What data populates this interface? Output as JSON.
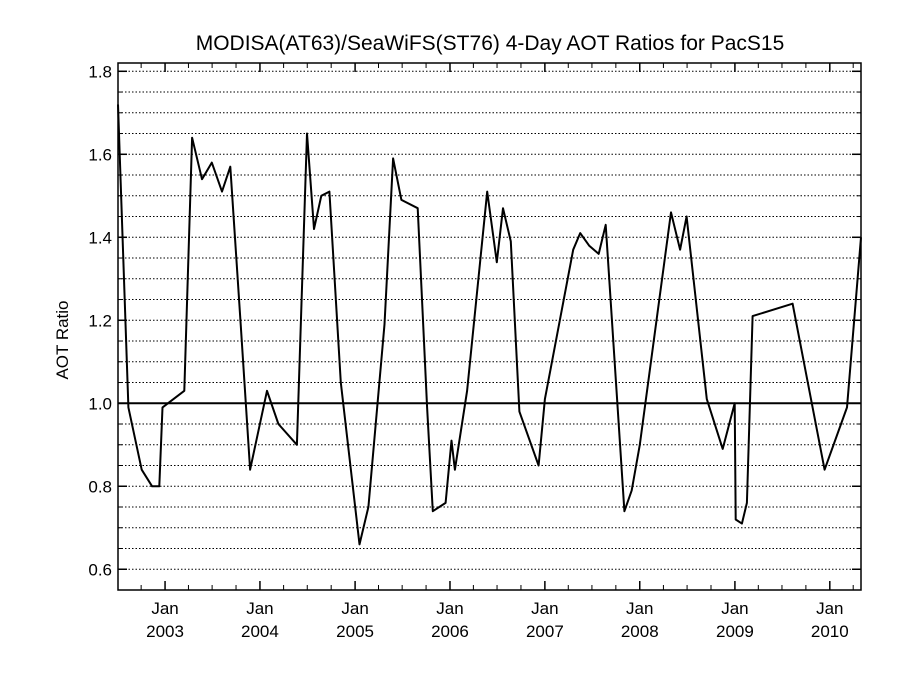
{
  "chart_data": {
    "type": "line",
    "title": "MODISA(AT63)/SeaWiFS(ST76) 4-Day AOT Ratios for PacS15",
    "xlabel": "",
    "ylabel": "AOT Ratio",
    "ylim": [
      0.55,
      1.82
    ],
    "xlim": [
      "2002-07-04",
      "2010-05-01"
    ],
    "y_ticks": [
      "0.6",
      "0.8",
      "1.0",
      "1.2",
      "1.4",
      "1.6",
      "1.8"
    ],
    "y_tick_values": [
      0.6,
      0.8,
      1.0,
      1.2,
      1.4,
      1.6,
      1.8
    ],
    "x_tick_dates": [
      "2003-01-01",
      "2004-01-01",
      "2005-01-01",
      "2006-01-01",
      "2007-01-01",
      "2008-01-01",
      "2009-01-01",
      "2010-01-01"
    ],
    "x_tick_labels": [
      {
        "month": "Jan",
        "year": "2003"
      },
      {
        "month": "Jan",
        "year": "2004"
      },
      {
        "month": "Jan",
        "year": "2005"
      },
      {
        "month": "Jan",
        "year": "2006"
      },
      {
        "month": "Jan",
        "year": "2007"
      },
      {
        "month": "Jan",
        "year": "2008"
      },
      {
        "month": "Jan",
        "year": "2009"
      },
      {
        "month": "Jan",
        "year": "2010"
      }
    ],
    "reference_line": 1.0,
    "grid": "dotted horizontal",
    "series": [
      {
        "x": [
          "2002-07-04",
          "2002-08-13",
          "2002-10-03",
          "2002-11-12",
          "2002-12-10",
          "2002-12-22",
          "2003-03-16",
          "2003-04-15",
          "2003-05-23",
          "2003-06-30",
          "2003-08-08",
          "2003-09-09",
          "2003-10-19",
          "2003-11-24",
          "2004-01-28",
          "2004-03-12",
          "2004-05-22",
          "2004-06-30",
          "2004-07-27",
          "2004-08-24",
          "2004-09-24",
          "2004-11-07",
          "2005-01-18",
          "2005-02-21",
          "2005-04-24",
          "2005-05-27",
          "2005-06-28",
          "2005-08-30",
          "2005-10-05",
          "2005-10-27",
          "2005-12-15",
          "2006-01-07",
          "2006-01-20",
          "2006-03-08",
          "2006-05-24",
          "2006-06-30",
          "2006-07-24",
          "2006-08-23",
          "2006-09-25",
          "2006-12-08",
          "2007-01-01",
          "2007-04-20",
          "2007-05-17",
          "2007-06-20",
          "2007-07-27",
          "2007-08-23",
          "2007-11-03",
          "2007-12-01",
          "2008-01-01",
          "2008-04-30",
          "2008-06-04",
          "2008-06-29",
          "2008-09-15",
          "2008-11-15",
          "2008-12-31",
          "2009-01-04",
          "2009-01-28",
          "2009-02-16",
          "2009-03-10",
          "2009-08-11",
          "2009-12-12",
          "2010-03-08",
          "2010-05-01"
        ],
        "y": [
          1.72,
          0.99,
          0.84,
          0.8,
          0.8,
          0.99,
          1.03,
          1.64,
          1.54,
          1.58,
          1.51,
          1.57,
          1.19,
          0.84,
          1.03,
          0.95,
          0.9,
          1.65,
          1.42,
          1.5,
          1.51,
          1.05,
          0.66,
          0.75,
          1.19,
          1.59,
          1.49,
          1.47,
          0.99,
          0.74,
          0.76,
          0.91,
          0.84,
          1.03,
          1.51,
          1.34,
          1.47,
          1.39,
          0.98,
          0.85,
          1.01,
          1.37,
          1.41,
          1.38,
          1.36,
          1.43,
          0.74,
          0.79,
          0.9,
          1.46,
          1.37,
          1.45,
          1.01,
          0.89,
          1.0,
          0.72,
          0.71,
          0.76,
          1.21,
          1.24,
          0.84,
          0.99,
          1.4
        ]
      }
    ]
  }
}
